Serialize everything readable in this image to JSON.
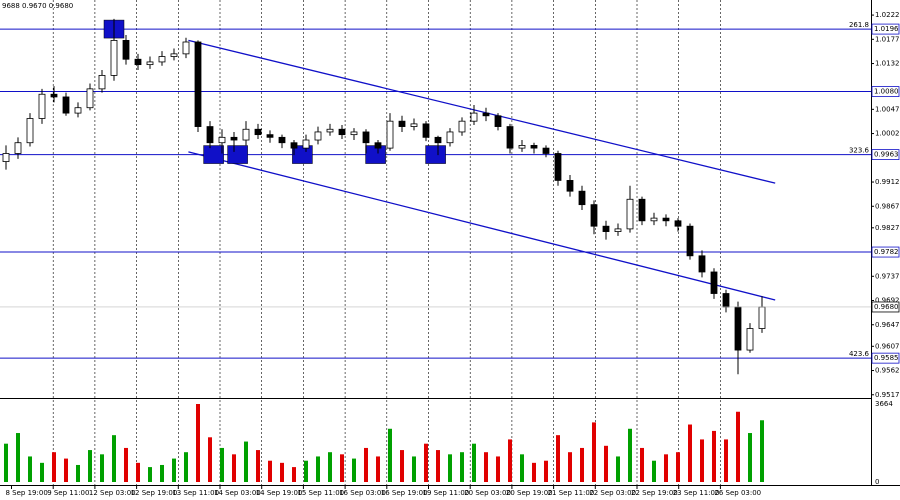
{
  "chart_data": {
    "type": "candlestick",
    "header": "9688 0.9670 0.9680",
    "open": [
      0.995,
      0.9965,
      0.9985,
      1.003,
      1.0075,
      1.007,
      1.004,
      1.005,
      1.0085,
      1.011,
      1.0175,
      1.014,
      1.013,
      1.0135,
      1.0145,
      1.015,
      1.0172,
      1.0015,
      0.9985,
      0.9995,
      0.999,
      1.001,
      1.0,
      0.9995,
      0.9985,
      0.9975,
      0.999,
      1.0005,
      1.001,
      1.0,
      1.0005,
      0.9985,
      0.9975,
      1.0025,
      1.0015,
      1.002,
      0.9995,
      0.9985,
      1.0005,
      1.0025,
      1.004,
      1.0035,
      1.0015,
      0.9975,
      0.998,
      0.9975,
      0.9965,
      0.9915,
      0.9895,
      0.987,
      0.983,
      0.982,
      0.9825,
      0.988,
      0.984,
      0.9845,
      0.984,
      0.983,
      0.9775,
      0.9745,
      0.9705,
      0.968,
      0.96,
      0.964
    ],
    "high": [
      0.998,
      0.9995,
      1.004,
      1.0085,
      1.009,
      1.0078,
      1.006,
      1.0095,
      1.012,
      1.0215,
      1.0185,
      1.015,
      1.0145,
      1.0155,
      1.016,
      1.018,
      1.0175,
      1.0025,
      1.001,
      1.0005,
      1.0025,
      1.002,
      1.0008,
      1.0,
      0.999,
      1.0,
      1.0015,
      1.002,
      1.0018,
      1.0012,
      1.001,
      0.999,
      1.004,
      1.0035,
      1.003,
      1.0025,
      0.9998,
      1.0012,
      1.0032,
      1.0055,
      1.005,
      1.004,
      1.002,
      0.999,
      0.9985,
      0.998,
      0.997,
      0.9925,
      0.9905,
      0.9878,
      0.984,
      0.9835,
      0.9905,
      0.9885,
      0.9855,
      0.9852,
      0.9845,
      0.9835,
      0.9785,
      0.9752,
      0.9712,
      0.969,
      0.965,
      0.97
    ],
    "low": [
      0.9935,
      0.9955,
      0.9978,
      1.002,
      1.006,
      1.0035,
      1.0032,
      1.0045,
      1.0078,
      1.01,
      1.013,
      1.012,
      1.0122,
      1.0128,
      1.0138,
      1.0142,
      1.0005,
      0.9975,
      0.9965,
      0.9968,
      0.998,
      0.9992,
      0.9985,
      0.9975,
      0.9962,
      0.9968,
      0.9982,
      0.9998,
      0.9992,
      0.999,
      0.9965,
      0.9965,
      0.997,
      1.0005,
      1.0008,
      0.9988,
      0.9962,
      0.9978,
      0.9998,
      1.0018,
      1.0025,
      1.0008,
      0.9965,
      0.9968,
      0.9965,
      0.9958,
      0.9905,
      0.9885,
      0.986,
      0.9815,
      0.9805,
      0.9812,
      0.9818,
      0.9832,
      0.9832,
      0.983,
      0.982,
      0.9768,
      0.9735,
      0.9695,
      0.967,
      0.9555,
      0.9595,
      0.9632
    ],
    "close": [
      0.9965,
      0.9985,
      1.003,
      1.0075,
      1.007,
      1.004,
      1.005,
      1.0085,
      1.011,
      1.0175,
      1.014,
      1.013,
      1.0135,
      1.0145,
      1.015,
      1.0172,
      1.0015,
      0.9985,
      0.9995,
      0.999,
      1.001,
      1.0,
      0.9995,
      0.9985,
      0.9975,
      0.999,
      1.0005,
      1.001,
      1.0,
      1.0005,
      0.9985,
      0.9975,
      1.0025,
      1.0015,
      1.002,
      0.9995,
      0.9985,
      1.0005,
      1.0025,
      1.004,
      1.0035,
      1.0015,
      0.9975,
      0.998,
      0.9975,
      0.9965,
      0.9915,
      0.9895,
      0.987,
      0.983,
      0.982,
      0.9825,
      0.988,
      0.984,
      0.9845,
      0.984,
      0.983,
      0.9775,
      0.9745,
      0.9705,
      0.968,
      0.96,
      0.964,
      0.968
    ],
    "volume": [
      1800,
      2300,
      1200,
      900,
      1400,
      1100,
      800,
      1500,
      1300,
      2200,
      1600,
      900,
      700,
      800,
      1100,
      1400,
      3664,
      2100,
      1600,
      1300,
      1900,
      1500,
      1000,
      900,
      700,
      1000,
      1200,
      1400,
      1300,
      1100,
      1600,
      1200,
      2500,
      1500,
      1200,
      1800,
      1500,
      1300,
      1400,
      1800,
      1400,
      1200,
      2000,
      1300,
      900,
      1000,
      2200,
      1400,
      1600,
      2800,
      1700,
      1200,
      2500,
      1600,
      1000,
      1300,
      1400,
      2700,
      2000,
      2400,
      2000,
      3300,
      2300,
      2900
    ],
    "up_color": "#00a000",
    "down_color": "#e00000",
    "ylim": [
      0.9511,
      1.025
    ],
    "yticks": [
      1.0222,
      1.0177,
      1.0132,
      1.0047,
      1.0002,
      0.9912,
      0.9867,
      0.9827,
      0.9737,
      0.9692,
      0.9647,
      0.9607,
      0.9562,
      0.9517
    ],
    "levels": [
      {
        "value": 1.0196,
        "label": "1.0196",
        "fib": "261.8"
      },
      {
        "value": 1.008,
        "label": "1.0080"
      },
      {
        "value": 0.9963,
        "label": "0.9963",
        "fib": "323.6"
      },
      {
        "value": 0.9782,
        "label": "0.9782"
      },
      {
        "value": 0.9585,
        "label": "0.9585",
        "fib": "423.6"
      }
    ],
    "current_price": {
      "value": 0.968,
      "label": "0.9680"
    },
    "level_color": "#1010c8",
    "trendlines": [
      {
        "x": [
          15.2,
          64.1
        ],
        "y": [
          1.0175,
          0.991
        ]
      },
      {
        "x": [
          15.2,
          64.1
        ],
        "y": [
          0.9968,
          0.9693
        ]
      }
    ],
    "markers": [
      {
        "x": 9,
        "y": 1.0196
      },
      {
        "x": 17.3,
        "y": 0.9963
      },
      {
        "x": 19.3,
        "y": 0.9963
      },
      {
        "x": 24.7,
        "y": 0.9963
      },
      {
        "x": 30.8,
        "y": 0.9963
      },
      {
        "x": 35.8,
        "y": 0.9963
      }
    ],
    "volume_ylim": [
      0,
      3664
    ],
    "volume_yticks": [
      3664,
      0
    ],
    "time_labels": [
      "8 Sep 19:00",
      "9 Sep 11:00",
      "12 Sep 03:00",
      "12 Sep 19:00",
      "13 Sep 11:00",
      "14 Sep 03:00",
      "14 Sep 19:00",
      "15 Sep 11:00",
      "16 Sep 03:00",
      "16 Sep 19:00",
      "19 Sep 11:00",
      "20 Sep 03:00",
      "20 Sep 19:00",
      "21 Sep 11:00",
      "22 Sep 03:00",
      "22 Sep 19:00",
      "23 Sep 11:00",
      "26 Sep 03:00"
    ],
    "grid": true
  }
}
